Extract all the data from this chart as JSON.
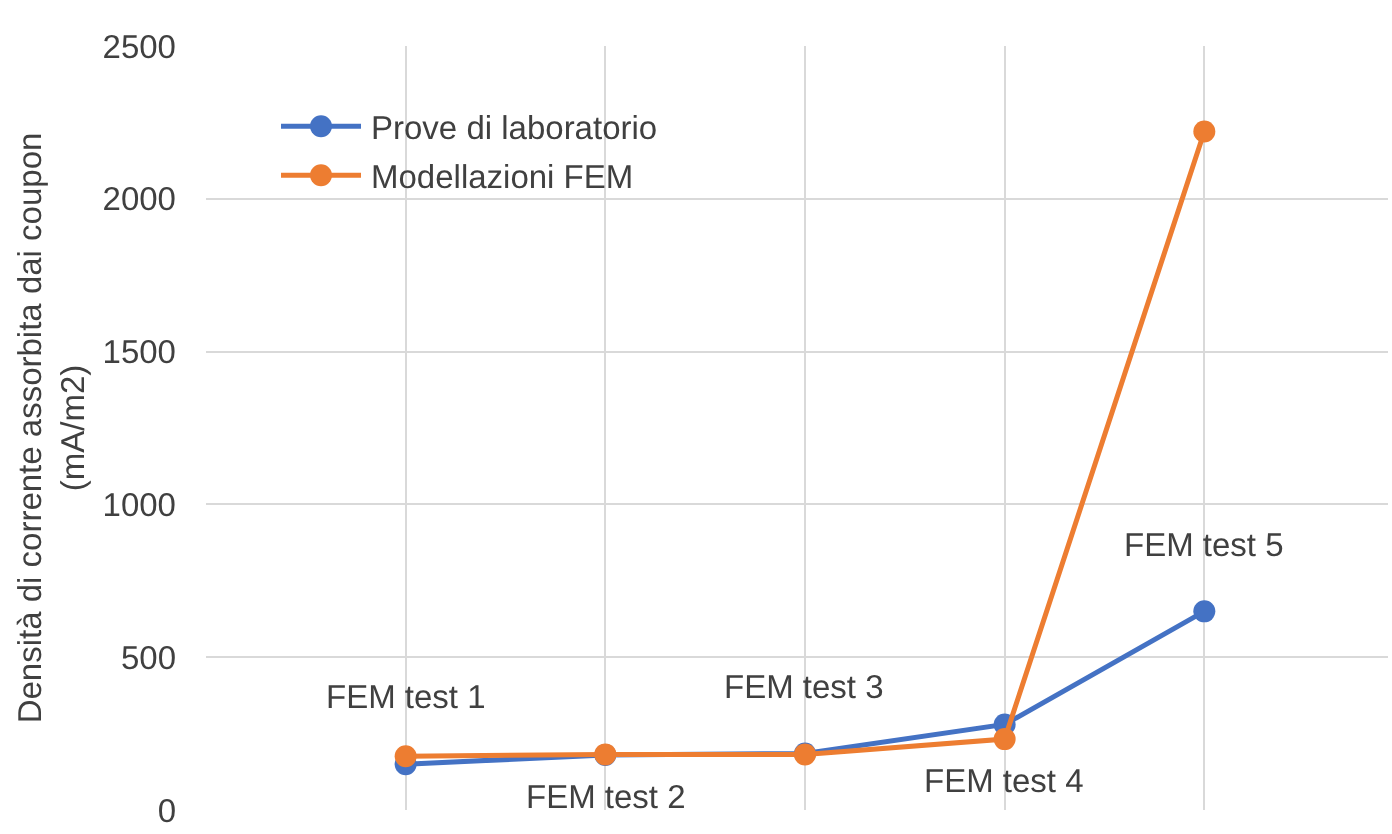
{
  "chart_data": {
    "type": "line",
    "ylabel": "Densità di corrente assorbita dai coupon\n(mA/m2)",
    "categories": [
      null,
      null,
      null,
      null,
      null
    ],
    "series": [
      {
        "name": "Prove di laboratorio",
        "color": "#4472c4",
        "values": [
          150,
          180,
          185,
          280,
          650
        ]
      },
      {
        "name": "Modellazioni FEM",
        "color": "#ed7d31",
        "values": [
          176,
          182,
          182,
          232,
          2220
        ]
      }
    ],
    "ylim": [
      0,
      2500
    ],
    "yticks": [
      0,
      500,
      1000,
      1500,
      2000,
      2500
    ],
    "annotations": [
      "FEM test 1",
      "FEM test 2",
      "FEM test 3",
      "FEM test 4",
      "FEM test 5"
    ],
    "grid": true,
    "legend": "top left",
    "tick_labels": "y",
    "marker": "circle",
    "line_style": "solid"
  }
}
